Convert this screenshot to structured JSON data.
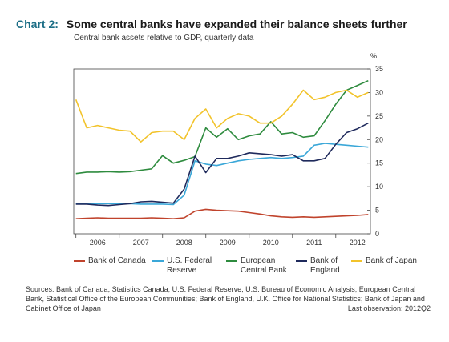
{
  "header": {
    "chart_number": "Chart 2:",
    "title": "Some central banks have expanded their balance sheets further",
    "subtitle": "Central bank assets relative to GDP, quarterly data",
    "unit": "%"
  },
  "legend": [
    {
      "label": "Bank of Canada",
      "color": "#c0432c"
    },
    {
      "label": "U.S. Federal\nReserve",
      "color": "#3aa7d8"
    },
    {
      "label": "European\nCentral Bank",
      "color": "#2e8b3e"
    },
    {
      "label": "Bank of\nEngland",
      "color": "#1f2a5c"
    },
    {
      "label": "Bank of Japan",
      "color": "#f2c32b"
    }
  ],
  "footer": {
    "sources": "Sources: Bank of Canada, Statistics Canada; U.S. Federal Reserve, U.S. Bureau of Economic Analysis; European Central Bank, Statistical Office of the European Communities; Bank of England, U.K. Office for National Statistics; Bank of Japan and Cabinet Office of Japan",
    "last_observation": "Last observation: 2012Q2"
  },
  "chart_data": {
    "type": "line",
    "x": [
      2005.5,
      2005.75,
      2006.0,
      2006.25,
      2006.5,
      2006.75,
      2007.0,
      2007.25,
      2007.5,
      2007.75,
      2008.0,
      2008.25,
      2008.5,
      2008.75,
      2009.0,
      2009.25,
      2009.5,
      2009.75,
      2010.0,
      2010.25,
      2010.5,
      2010.75,
      2011.0,
      2011.25,
      2011.5,
      2011.75,
      2012.0,
      2012.25
    ],
    "xlim": [
      2005.45,
      2012.3
    ],
    "ylim": [
      0,
      35
    ],
    "yticks": [
      0,
      5,
      10,
      15,
      20,
      25,
      30,
      35
    ],
    "xticks": [
      "2006",
      "2007",
      "2008",
      "2009",
      "2010",
      "2011",
      "2012"
    ],
    "xtick_positions": [
      2006.0,
      2007.0,
      2008.0,
      2009.0,
      2010.0,
      2011.0,
      2012.0
    ],
    "series": [
      {
        "name": "Bank of Canada",
        "color": "#c0432c",
        "values": [
          3.2,
          3.3,
          3.4,
          3.3,
          3.3,
          3.3,
          3.3,
          3.4,
          3.3,
          3.2,
          3.4,
          4.8,
          5.2,
          5.0,
          4.9,
          4.8,
          4.5,
          4.2,
          3.8,
          3.6,
          3.5,
          3.6,
          3.5,
          3.6,
          3.7,
          3.8,
          3.9,
          4.1
        ]
      },
      {
        "name": "U.S. Federal Reserve",
        "color": "#3aa7d8",
        "values": [
          6.4,
          6.4,
          6.4,
          6.4,
          6.4,
          6.4,
          6.3,
          6.3,
          6.3,
          6.2,
          8.2,
          15.5,
          14.8,
          14.5,
          15.0,
          15.5,
          15.8,
          16.0,
          16.2,
          16.0,
          16.2,
          16.5,
          18.8,
          19.2,
          19.0,
          18.8,
          18.6,
          18.4
        ]
      },
      {
        "name": "European Central Bank",
        "color": "#2e8b3e",
        "values": [
          12.8,
          13.1,
          13.1,
          13.2,
          13.1,
          13.2,
          13.5,
          13.8,
          16.6,
          15.0,
          15.6,
          16.4,
          22.5,
          20.5,
          22.3,
          20.0,
          20.8,
          21.2,
          23.8,
          21.2,
          21.5,
          20.5,
          20.8,
          24.0,
          27.5,
          30.5,
          31.5,
          32.5
        ]
      },
      {
        "name": "Bank of England",
        "color": "#1f2a5c",
        "values": [
          6.3,
          6.3,
          6.1,
          6.0,
          6.2,
          6.4,
          6.8,
          6.9,
          6.7,
          6.5,
          9.5,
          16.5,
          13.0,
          16.0,
          16.0,
          16.5,
          17.2,
          17.0,
          16.8,
          16.5,
          16.8,
          15.5,
          15.5,
          16.0,
          19.0,
          21.5,
          22.3,
          23.5
        ]
      },
      {
        "name": "Bank of Japan",
        "color": "#f2c32b",
        "values": [
          28.5,
          22.5,
          23.0,
          22.5,
          22.0,
          21.8,
          19.5,
          21.5,
          21.8,
          21.8,
          20.0,
          24.5,
          26.5,
          22.5,
          24.5,
          25.5,
          25.0,
          23.5,
          23.5,
          25.0,
          27.5,
          30.5,
          28.5,
          29.0,
          30.0,
          30.5,
          29.0,
          30.0
        ]
      }
    ]
  }
}
